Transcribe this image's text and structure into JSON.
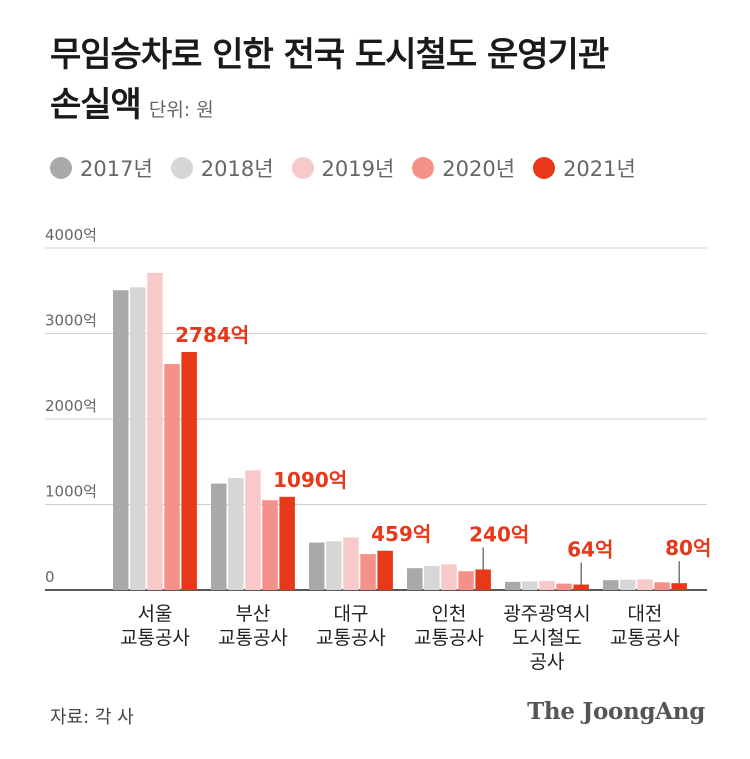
{
  "title_line1": "무임승차로 인한 전국 도시철도 운영기관",
  "title_line2": "손실액",
  "unit": "단위: 원",
  "source": "자료: 각 사",
  "logo": "The JoongAng",
  "colors": [
    "#a9a9a9",
    "#d6d6d6",
    "#f8c9c9",
    "#f4928a",
    "#e8381a"
  ],
  "chart_data": {
    "type": "bar",
    "categories": [
      [
        "서울",
        "교통공사"
      ],
      [
        "부산",
        "교통공사"
      ],
      [
        "대구",
        "교통공사"
      ],
      [
        "인천",
        "교통공사"
      ],
      [
        "광주광역시",
        "도시철도",
        "공사"
      ],
      [
        "대전",
        "교통공사"
      ]
    ],
    "series": [
      {
        "name": "2017년",
        "values": [
          3506,
          1245,
          555,
          255,
          95,
          115
        ]
      },
      {
        "name": "2018년",
        "values": [
          3540,
          1310,
          570,
          280,
          100,
          120
        ]
      },
      {
        "name": "2019년",
        "values": [
          3709,
          1399,
          615,
          300,
          105,
          125
        ]
      },
      {
        "name": "2020년",
        "values": [
          2643,
          1050,
          420,
          220,
          75,
          90
        ]
      },
      {
        "name": "2021년",
        "values": [
          2784,
          1090,
          459,
          240,
          64,
          80
        ]
      }
    ],
    "data_labels": [
      "2784억",
      "1090억",
      "459억",
      "240억",
      "64억",
      "80억"
    ],
    "yticks": [
      "0",
      "1000억",
      "2000억",
      "3000억",
      "4000억"
    ],
    "ylim": [
      0,
      4000
    ],
    "grid": true,
    "legend_position": "top-left"
  }
}
